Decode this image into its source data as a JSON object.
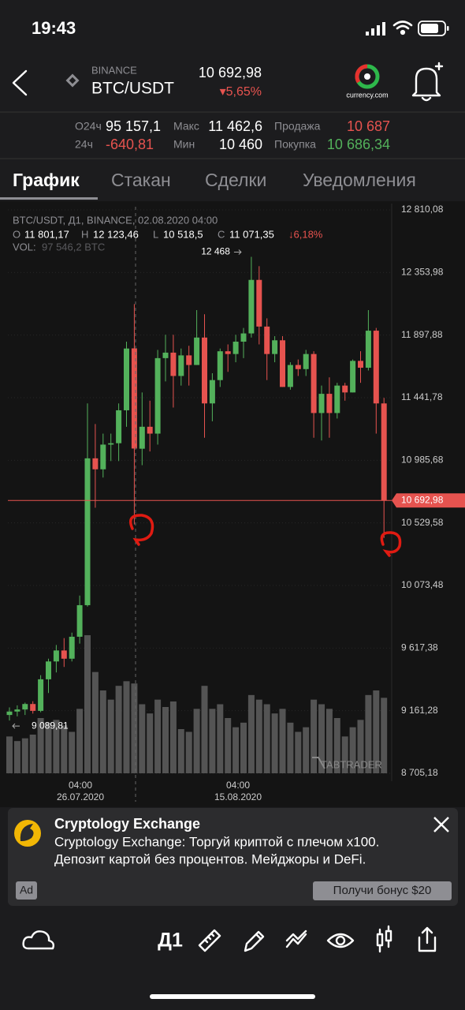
{
  "status_bar": {
    "time": "19:43"
  },
  "header": {
    "exchange": "BINANCE",
    "pair": "BTC/USDT",
    "price": "10 692,98",
    "change": "▾5,65%",
    "logo_text": "currency.com"
  },
  "stats": [
    {
      "label": "О24ч",
      "value": "95 157,1"
    },
    {
      "label": "Макс",
      "value": "11 462,6"
    },
    {
      "label": "Продажа",
      "value": "10 687"
    },
    {
      "label": "24ч",
      "value": "-640,81"
    },
    {
      "label": "Мин",
      "value": "10 460"
    },
    {
      "label": "Покупка",
      "value": "10 686,34"
    }
  ],
  "tabs": [
    "График",
    "Стакан",
    "Сделки",
    "Уведомления"
  ],
  "chart": {
    "type": "candlestick",
    "info_title": "BTC/USDT, Д1, BINANCE, 02.08.2020 04:00",
    "ohlc": [
      {
        "key": "O",
        "value": "11 801,17"
      },
      {
        "key": "H",
        "value": "12 123,46"
      },
      {
        "key": "L",
        "value": "10 518,5"
      },
      {
        "key": "C",
        "value": "11 071,35"
      }
    ],
    "change": "↓6,18%",
    "volume_label": "VOL:",
    "volume": "97 546,2 BTC",
    "colors": {
      "up": "#53b15b",
      "down": "#e6534f",
      "volume": "#545454"
    },
    "ylim": [
      8705.18,
      12810.08
    ],
    "yticks": [
      {
        "value": 12810.08,
        "label": "12 810,08"
      },
      {
        "value": 12353.98,
        "label": "12 353,98"
      },
      {
        "value": 11897.88,
        "label": "11 897,88"
      },
      {
        "value": 11441.78,
        "label": "11 441,78"
      },
      {
        "value": 10985.68,
        "label": "10 985,68"
      },
      {
        "value": 10529.58,
        "label": "10 529,58"
      },
      {
        "value": 10073.48,
        "label": "10 073,48"
      },
      {
        "value": 9617.38,
        "label": "9 617,38"
      },
      {
        "value": 9161.28,
        "label": "9 161,28"
      },
      {
        "value": 8705.18,
        "label": "8 705,18"
      }
    ],
    "x_labels": [
      {
        "time": "04:00",
        "date": "26.07.2020"
      },
      {
        "time": "04:00",
        "date": "15.08.2020"
      }
    ],
    "high_marker": "12 468",
    "low_marker": "9 089,81",
    "last_price": {
      "value": 10692.98,
      "label": "10 692,98"
    },
    "watermark": "TABTRADER",
    "candles": [
      [
        9130,
        9185,
        9089.81,
        9155,
        40000
      ],
      [
        9155,
        9200,
        9120,
        9170,
        35000
      ],
      [
        9170,
        9220,
        9130,
        9210,
        38000
      ],
      [
        9210,
        9230,
        9140,
        9160,
        42000
      ],
      [
        9160,
        9420,
        9150,
        9390,
        60000
      ],
      [
        9390,
        9540,
        9290,
        9520,
        55000
      ],
      [
        9520,
        9640,
        9440,
        9600,
        58000
      ],
      [
        9600,
        9690,
        9480,
        9540,
        52000
      ],
      [
        9540,
        9730,
        9520,
        9700,
        45000
      ],
      [
        9700,
        10000,
        9650,
        9930,
        70000
      ],
      [
        9930,
        11400,
        9920,
        11000,
        150000
      ],
      [
        11000,
        11250,
        10640,
        10920,
        110000
      ],
      [
        10920,
        11180,
        10860,
        11100,
        90000
      ],
      [
        11100,
        11180,
        10980,
        11110,
        80000
      ],
      [
        11110,
        11400,
        10980,
        11350,
        95000
      ],
      [
        11350,
        11850,
        11230,
        11800,
        100000
      ],
      [
        11801.17,
        12123.46,
        10518.5,
        11071.35,
        97546.2
      ],
      [
        11070,
        11480,
        10950,
        11230,
        75000
      ],
      [
        11230,
        11420,
        11050,
        11180,
        65000
      ],
      [
        11180,
        11790,
        11100,
        11730,
        80000
      ],
      [
        11730,
        11900,
        11560,
        11770,
        72000
      ],
      [
        11770,
        11900,
        11370,
        11600,
        78000
      ],
      [
        11600,
        11800,
        11530,
        11750,
        48000
      ],
      [
        11750,
        11820,
        11530,
        11680,
        45000
      ],
      [
        11680,
        12080,
        11680,
        11880,
        70000
      ],
      [
        11880,
        12050,
        11150,
        11400,
        95000
      ],
      [
        11400,
        11620,
        11270,
        11570,
        70000
      ],
      [
        11570,
        11800,
        11520,
        11780,
        75000
      ],
      [
        11780,
        11830,
        11630,
        11760,
        60000
      ],
      [
        11760,
        11900,
        11700,
        11850,
        50000
      ],
      [
        11850,
        11950,
        11730,
        11910,
        55000
      ],
      [
        11910,
        12468,
        11880,
        12300,
        85000
      ],
      [
        12300,
        12400,
        11830,
        11960,
        80000
      ],
      [
        11960,
        12020,
        11570,
        11760,
        75000
      ],
      [
        11760,
        11890,
        11700,
        11860,
        65000
      ],
      [
        11860,
        11890,
        11520,
        11520,
        70000
      ],
      [
        11520,
        11700,
        11500,
        11680,
        55000
      ],
      [
        11680,
        11720,
        11600,
        11650,
        45000
      ],
      [
        11650,
        11790,
        11600,
        11760,
        50000
      ],
      [
        11760,
        11780,
        11150,
        11330,
        80000
      ],
      [
        11330,
        11530,
        11130,
        11470,
        75000
      ],
      [
        11470,
        11590,
        11150,
        11330,
        70000
      ],
      [
        11330,
        11550,
        11290,
        11530,
        60000
      ],
      [
        11530,
        11550,
        11420,
        11480,
        40000
      ],
      [
        11480,
        11720,
        11480,
        11710,
        50000
      ],
      [
        11710,
        11780,
        11550,
        11660,
        58000
      ],
      [
        11660,
        12080,
        11640,
        11930,
        85000
      ],
      [
        11930,
        11950,
        11180,
        11400,
        90000
      ],
      [
        11400,
        11440,
        10420,
        10692.98,
        82000
      ]
    ]
  },
  "ad": {
    "title": "Cryptology Exchange",
    "line1": "Cryptology Exchange: Торгуй криптой с плечом x100.",
    "line2": "Депозит картой без процентов. Мейджоры и DeFi.",
    "badge": "Ad",
    "button": "Получи бонус $20"
  },
  "toolbar": {
    "interval": "Д1"
  }
}
